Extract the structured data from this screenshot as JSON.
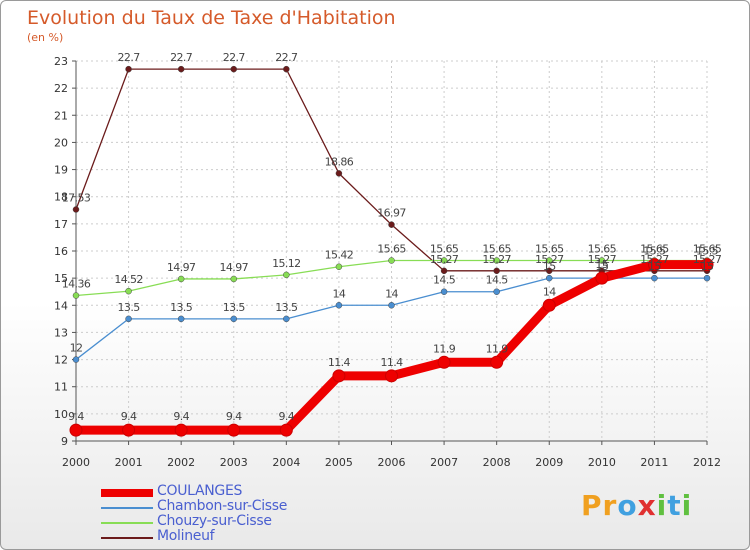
{
  "chart_data": {
    "type": "line",
    "title": "Evolution du Taux de Taxe d'Habitation",
    "subtitle": "(en %)",
    "x": [
      "2000",
      "2001",
      "2002",
      "2003",
      "2004",
      "2005",
      "2006",
      "2007",
      "2008",
      "2009",
      "2010",
      "2011",
      "2012"
    ],
    "ylim": [
      9,
      23
    ],
    "yticks": [
      9,
      10,
      11,
      12,
      13,
      14,
      15,
      16,
      17,
      18,
      19,
      20,
      21,
      22,
      23
    ],
    "grid": true,
    "legend_position": "bottom-left",
    "series": [
      {
        "name": "COULANGES",
        "color": "#ee0000",
        "values": [
          9.4,
          9.4,
          9.4,
          9.4,
          9.4,
          11.4,
          11.4,
          11.9,
          11.9,
          14,
          15,
          15.5,
          15.5
        ],
        "labels": [
          "9.4",
          "9.4",
          "9.4",
          "9.4",
          "9.4",
          "11.4",
          "11.4",
          "11.9",
          "11.9",
          "14",
          "15",
          "15.5",
          "15.5"
        ]
      },
      {
        "name": "Chambon-sur-Cisse",
        "color": "#4a8ed0",
        "values": [
          12,
          13.5,
          13.5,
          13.5,
          13.5,
          14,
          14,
          14.5,
          14.5,
          15,
          15,
          15,
          15
        ],
        "labels": [
          "12",
          "13.5",
          "13.5",
          "13.5",
          "13.5",
          "14",
          "14",
          "14.5",
          "14.5",
          "15",
          "15",
          "15",
          "15"
        ]
      },
      {
        "name": "Chouzy-sur-Cisse",
        "color": "#88dd55",
        "values": [
          14.36,
          14.52,
          14.97,
          14.97,
          15.12,
          15.42,
          15.65,
          15.65,
          15.65,
          15.65,
          15.65,
          15.65,
          15.65
        ],
        "labels": [
          "14.36",
          "14.52",
          "14.97",
          "14.97",
          "15.12",
          "15.42",
          "15.65",
          "15.65",
          "15.65",
          "15.65",
          "15.65",
          "15.65",
          "15.65"
        ]
      },
      {
        "name": "Molineuf",
        "color": "#6b1b1b",
        "values": [
          17.53,
          22.7,
          22.7,
          22.7,
          22.7,
          18.86,
          16.97,
          15.27,
          15.27,
          15.27,
          15.27,
          15.27,
          15.27
        ],
        "labels": [
          "17.53",
          "22.7",
          "22.7",
          "22.7",
          "22.7",
          "18.86",
          "16.97",
          "15.27",
          "15.27",
          "15.27",
          "15.27",
          "15.27",
          "15.27"
        ]
      }
    ]
  },
  "brand": {
    "text": "Proxiti",
    "letters": [
      "P",
      "r",
      "o",
      "x",
      "i",
      "t",
      "i"
    ],
    "colors": [
      "#f0a020",
      "#f0a020",
      "#40a0e0",
      "#e03030",
      "#60c040",
      "#40a0e0",
      "#60c040"
    ]
  }
}
